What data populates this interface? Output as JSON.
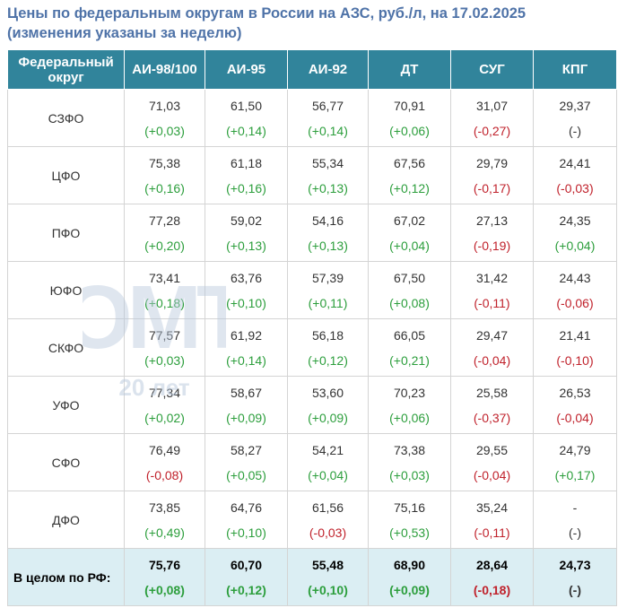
{
  "title_line1": "Цены по федеральным округам в России на АЗС, руб./л, на 17.02.2025",
  "title_line2": "(изменения указаны за неделю)",
  "headers": [
    "Федеральный округ",
    "АИ-98/100",
    "АИ-95",
    "АИ-92",
    "ДТ",
    "СУГ",
    "КПГ"
  ],
  "watermark": {
    "text": "ОМТ",
    "sub": "20 лет"
  },
  "colors": {
    "header": "#31849b",
    "title": "#4f73a8",
    "positive": "#2c9e3c",
    "negative": "#c0212b",
    "total_bg": "#dbeef3"
  },
  "rows": [
    {
      "district": "СЗФО",
      "cells": [
        {
          "v": "71,03",
          "c": "(+0,03)",
          "s": "pos"
        },
        {
          "v": "61,50",
          "c": "(+0,14)",
          "s": "pos"
        },
        {
          "v": "56,77",
          "c": "(+0,14)",
          "s": "pos"
        },
        {
          "v": "70,91",
          "c": "(+0,06)",
          "s": "pos"
        },
        {
          "v": "31,07",
          "c": "(-0,27)",
          "s": "neg"
        },
        {
          "v": "29,37",
          "c": "(-)",
          "s": "neu"
        }
      ]
    },
    {
      "district": "ЦФО",
      "cells": [
        {
          "v": "75,38",
          "c": "(+0,16)",
          "s": "pos"
        },
        {
          "v": "61,18",
          "c": "(+0,16)",
          "s": "pos"
        },
        {
          "v": "55,34",
          "c": "(+0,13)",
          "s": "pos"
        },
        {
          "v": "67,56",
          "c": "(+0,12)",
          "s": "pos"
        },
        {
          "v": "29,79",
          "c": "(-0,17)",
          "s": "neg"
        },
        {
          "v": "24,41",
          "c": "(-0,03)",
          "s": "neg"
        }
      ]
    },
    {
      "district": "ПФО",
      "cells": [
        {
          "v": "77,28",
          "c": "(+0,20)",
          "s": "pos"
        },
        {
          "v": "59,02",
          "c": "(+0,13)",
          "s": "pos"
        },
        {
          "v": "54,16",
          "c": "(+0,13)",
          "s": "pos"
        },
        {
          "v": "67,02",
          "c": "(+0,04)",
          "s": "pos"
        },
        {
          "v": "27,13",
          "c": "(-0,19)",
          "s": "neg"
        },
        {
          "v": "24,35",
          "c": "(+0,04)",
          "s": "pos"
        }
      ]
    },
    {
      "district": "ЮФО",
      "cells": [
        {
          "v": "73,41",
          "c": "(+0,18)",
          "s": "pos"
        },
        {
          "v": "63,76",
          "c": "(+0,10)",
          "s": "pos"
        },
        {
          "v": "57,39",
          "c": "(+0,11)",
          "s": "pos"
        },
        {
          "v": "67,50",
          "c": "(+0,08)",
          "s": "pos"
        },
        {
          "v": "31,42",
          "c": "(-0,11)",
          "s": "neg"
        },
        {
          "v": "24,43",
          "c": "(-0,06)",
          "s": "neg"
        }
      ]
    },
    {
      "district": "СКФО",
      "cells": [
        {
          "v": "77,57",
          "c": "(+0,03)",
          "s": "pos"
        },
        {
          "v": "61,92",
          "c": "(+0,14)",
          "s": "pos"
        },
        {
          "v": "56,18",
          "c": "(+0,12)",
          "s": "pos"
        },
        {
          "v": "66,05",
          "c": "(+0,21)",
          "s": "pos"
        },
        {
          "v": "29,47",
          "c": "(-0,04)",
          "s": "neg"
        },
        {
          "v": "21,41",
          "c": "(-0,10)",
          "s": "neg"
        }
      ]
    },
    {
      "district": "УФО",
      "cells": [
        {
          "v": "77,34",
          "c": "(+0,02)",
          "s": "pos"
        },
        {
          "v": "58,67",
          "c": "(+0,09)",
          "s": "pos"
        },
        {
          "v": "53,60",
          "c": "(+0,09)",
          "s": "pos"
        },
        {
          "v": "70,23",
          "c": "(+0,06)",
          "s": "pos"
        },
        {
          "v": "25,58",
          "c": "(-0,37)",
          "s": "neg"
        },
        {
          "v": "26,53",
          "c": "(-0,04)",
          "s": "neg"
        }
      ]
    },
    {
      "district": "СФО",
      "cells": [
        {
          "v": "76,49",
          "c": "(-0,08)",
          "s": "neg"
        },
        {
          "v": "58,27",
          "c": "(+0,05)",
          "s": "pos"
        },
        {
          "v": "54,21",
          "c": "(+0,04)",
          "s": "pos"
        },
        {
          "v": "73,38",
          "c": "(+0,03)",
          "s": "pos"
        },
        {
          "v": "29,55",
          "c": "(-0,04)",
          "s": "neg"
        },
        {
          "v": "24,79",
          "c": "(+0,17)",
          "s": "pos"
        }
      ]
    },
    {
      "district": "ДФО",
      "cells": [
        {
          "v": "73,85",
          "c": "(+0,49)",
          "s": "pos"
        },
        {
          "v": "64,76",
          "c": "(+0,10)",
          "s": "pos"
        },
        {
          "v": "61,56",
          "c": "(-0,03)",
          "s": "neg"
        },
        {
          "v": "75,16",
          "c": "(+0,53)",
          "s": "pos"
        },
        {
          "v": "35,24",
          "c": "(-0,11)",
          "s": "neg"
        },
        {
          "v": "-",
          "c": "(-)",
          "s": "neu"
        }
      ]
    }
  ],
  "total": {
    "district": "В целом по РФ:",
    "cells": [
      {
        "v": "75,76",
        "c": "(+0,08)",
        "s": "pos"
      },
      {
        "v": "60,70",
        "c": "(+0,12)",
        "s": "pos"
      },
      {
        "v": "55,48",
        "c": "(+0,10)",
        "s": "pos"
      },
      {
        "v": "68,90",
        "c": "(+0,09)",
        "s": "pos"
      },
      {
        "v": "28,64",
        "c": "(-0,18)",
        "s": "neg"
      },
      {
        "v": "24,73",
        "c": "(-)",
        "s": "neu"
      }
    ]
  }
}
